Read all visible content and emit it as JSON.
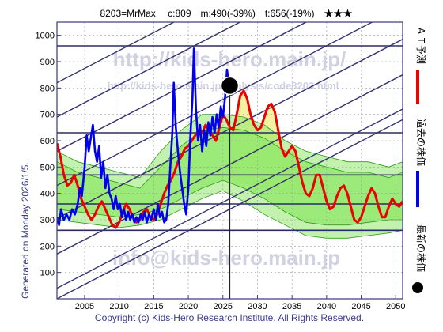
{
  "header": {
    "title": "8203=MrMax　 c:809　m:490(-39%)　t:656(-19%)　★★★"
  },
  "side_label": "Generated on Monday 2026/1/5.",
  "copyright": "Copyright (c) Kids-Hero Research Institute. All Rights Reserved.",
  "watermarks": {
    "url": "http://kids-hero.main.jp/",
    "analysis_url": "http://kids-hero.main.jp/analysis/code8203.html",
    "email": "info@kids-hero.main.jp"
  },
  "legend": [
    {
      "label": "ＡＩ予測",
      "color": "#ee0000",
      "kind": "line"
    },
    {
      "label": "過去の株価",
      "color": "#0000ee",
      "kind": "line"
    },
    {
      "label": "最新の株価",
      "color": "#000000",
      "kind": "dot"
    }
  ],
  "colors": {
    "frame": "#3a3a7a",
    "band_fill": "#8fe86a",
    "band_line": "#2e9a18",
    "yellow_fill": "#f4f2a0",
    "hline": "#2b2b66"
  },
  "chart_data": {
    "type": "line",
    "title": "8203=MrMax　 c:809　m:490(-39%)　t:656(-19%)　★★★",
    "xlim": [
      2001,
      2051
    ],
    "ylim": [
      0,
      1050
    ],
    "x_ticks": [
      2005,
      2010,
      2015,
      2020,
      2025,
      2030,
      2035,
      2040,
      2045,
      2050
    ],
    "y_ticks": [
      100,
      200,
      300,
      400,
      500,
      600,
      700,
      800,
      900,
      1000
    ],
    "grid": true,
    "current": {
      "x": 2026.0,
      "y": 809
    },
    "horizontal_lines": [
      960,
      630,
      470,
      360,
      260
    ],
    "trend_channel": {
      "slope_per_year": 13.6,
      "intercepts_2001": [
        0,
        40,
        170,
        305,
        430,
        560,
        690,
        820
      ]
    },
    "series": [
      {
        "name": "過去の株価",
        "color": "#0000ee",
        "points": [
          [
            2001.0,
            310
          ],
          [
            2001.3,
            280
          ],
          [
            2001.6,
            340
          ],
          [
            2002.0,
            300
          ],
          [
            2002.4,
            320
          ],
          [
            2002.8,
            300
          ],
          [
            2003.2,
            340
          ],
          [
            2003.6,
            320
          ],
          [
            2004.0,
            360
          ],
          [
            2004.3,
            420
          ],
          [
            2004.6,
            390
          ],
          [
            2005.0,
            500
          ],
          [
            2005.3,
            620
          ],
          [
            2005.6,
            560
          ],
          [
            2005.9,
            610
          ],
          [
            2006.2,
            660
          ],
          [
            2006.5,
            560
          ],
          [
            2006.8,
            520
          ],
          [
            2007.1,
            580
          ],
          [
            2007.4,
            460
          ],
          [
            2007.7,
            520
          ],
          [
            2008.0,
            420
          ],
          [
            2008.3,
            470
          ],
          [
            2008.6,
            400
          ],
          [
            2008.9,
            380
          ],
          [
            2009.2,
            340
          ],
          [
            2009.5,
            390
          ],
          [
            2009.8,
            340
          ],
          [
            2010.1,
            360
          ],
          [
            2010.4,
            310
          ],
          [
            2010.7,
            340
          ],
          [
            2011.0,
            300
          ],
          [
            2011.3,
            330
          ],
          [
            2011.6,
            300
          ],
          [
            2011.9,
            320
          ],
          [
            2012.2,
            290
          ],
          [
            2012.5,
            310
          ],
          [
            2012.8,
            290
          ],
          [
            2013.1,
            320
          ],
          [
            2013.4,
            300
          ],
          [
            2013.7,
            330
          ],
          [
            2014.0,
            290
          ],
          [
            2014.3,
            320
          ],
          [
            2014.6,
            300
          ],
          [
            2015.0,
            340
          ],
          [
            2015.3,
            300
          ],
          [
            2015.6,
            360
          ],
          [
            2015.9,
            310
          ],
          [
            2016.2,
            330
          ],
          [
            2016.5,
            290
          ],
          [
            2016.8,
            300
          ],
          [
            2017.1,
            360
          ],
          [
            2017.4,
            500
          ],
          [
            2017.7,
            640
          ],
          [
            2017.9,
            820
          ],
          [
            2018.2,
            650
          ],
          [
            2018.5,
            560
          ],
          [
            2018.8,
            480
          ],
          [
            2019.1,
            420
          ],
          [
            2019.4,
            360
          ],
          [
            2019.7,
            320
          ],
          [
            2020.0,
            420
          ],
          [
            2020.3,
            620
          ],
          [
            2020.6,
            760
          ],
          [
            2020.8,
            950
          ],
          [
            2021.1,
            720
          ],
          [
            2021.4,
            600
          ],
          [
            2021.7,
            660
          ],
          [
            2022.0,
            560
          ],
          [
            2022.3,
            640
          ],
          [
            2022.6,
            580
          ],
          [
            2022.9,
            670
          ],
          [
            2023.2,
            620
          ],
          [
            2023.5,
            690
          ],
          [
            2023.8,
            630
          ],
          [
            2024.1,
            700
          ],
          [
            2024.4,
            650
          ],
          [
            2024.7,
            730
          ],
          [
            2025.0,
            690
          ],
          [
            2025.3,
            760
          ],
          [
            2025.6,
            870
          ],
          [
            2025.9,
            800
          ]
        ]
      },
      {
        "name": "ＡＩ予測",
        "color": "#ee0000",
        "points": [
          [
            2001.0,
            590
          ],
          [
            2001.5,
            540
          ],
          [
            2002.0,
            470
          ],
          [
            2002.5,
            430
          ],
          [
            2003.0,
            440
          ],
          [
            2003.5,
            470
          ],
          [
            2004.0,
            430
          ],
          [
            2004.5,
            380
          ],
          [
            2005.0,
            350
          ],
          [
            2005.5,
            320
          ],
          [
            2006.0,
            300
          ],
          [
            2006.5,
            320
          ],
          [
            2007.0,
            350
          ],
          [
            2007.5,
            370
          ],
          [
            2008.0,
            340
          ],
          [
            2008.5,
            310
          ],
          [
            2009.0,
            280
          ],
          [
            2009.5,
            270
          ],
          [
            2010.0,
            290
          ],
          [
            2010.5,
            330
          ],
          [
            2011.0,
            360
          ],
          [
            2011.5,
            340
          ],
          [
            2012.0,
            310
          ],
          [
            2012.5,
            290
          ],
          [
            2013.0,
            300
          ],
          [
            2013.5,
            330
          ],
          [
            2014.0,
            340
          ],
          [
            2014.5,
            310
          ],
          [
            2015.0,
            300
          ],
          [
            2015.5,
            320
          ],
          [
            2016.0,
            360
          ],
          [
            2016.5,
            400
          ],
          [
            2017.0,
            430
          ],
          [
            2017.5,
            450
          ],
          [
            2018.0,
            480
          ],
          [
            2018.5,
            520
          ],
          [
            2019.0,
            540
          ],
          [
            2019.5,
            570
          ],
          [
            2020.0,
            580
          ],
          [
            2020.5,
            600
          ],
          [
            2021.0,
            620
          ],
          [
            2021.5,
            640
          ],
          [
            2022.0,
            630
          ],
          [
            2022.5,
            660
          ],
          [
            2023.0,
            640
          ],
          [
            2023.5,
            620
          ],
          [
            2024.0,
            600
          ],
          [
            2024.5,
            650
          ],
          [
            2025.0,
            700
          ],
          [
            2025.5,
            680
          ],
          [
            2026.0,
            650
          ],
          [
            2026.5,
            640
          ],
          [
            2027.0,
            700
          ],
          [
            2027.5,
            770
          ],
          [
            2028.0,
            790
          ],
          [
            2028.5,
            760
          ],
          [
            2029.0,
            700
          ],
          [
            2029.5,
            660
          ],
          [
            2030.0,
            640
          ],
          [
            2030.5,
            650
          ],
          [
            2031.0,
            690
          ],
          [
            2031.5,
            730
          ],
          [
            2032.0,
            740
          ],
          [
            2032.5,
            710
          ],
          [
            2033.0,
            640
          ],
          [
            2033.5,
            570
          ],
          [
            2034.0,
            540
          ],
          [
            2034.5,
            560
          ],
          [
            2035.0,
            580
          ],
          [
            2035.5,
            560
          ],
          [
            2036.0,
            500
          ],
          [
            2036.5,
            440
          ],
          [
            2037.0,
            400
          ],
          [
            2037.5,
            390
          ],
          [
            2038.0,
            420
          ],
          [
            2038.5,
            470
          ],
          [
            2039.0,
            470
          ],
          [
            2039.5,
            420
          ],
          [
            2040.0,
            370
          ],
          [
            2040.5,
            340
          ],
          [
            2041.0,
            350
          ],
          [
            2041.5,
            390
          ],
          [
            2042.0,
            420
          ],
          [
            2042.5,
            430
          ],
          [
            2043.0,
            400
          ],
          [
            2043.5,
            350
          ],
          [
            2044.0,
            300
          ],
          [
            2044.5,
            290
          ],
          [
            2045.0,
            310
          ],
          [
            2045.5,
            350
          ],
          [
            2046.0,
            390
          ],
          [
            2046.5,
            420
          ],
          [
            2047.0,
            400
          ],
          [
            2047.5,
            350
          ],
          [
            2048.0,
            310
          ],
          [
            2048.5,
            310
          ],
          [
            2049.0,
            350
          ],
          [
            2049.5,
            380
          ],
          [
            2050.0,
            360
          ],
          [
            2050.5,
            350
          ],
          [
            2051.0,
            370
          ]
        ]
      }
    ],
    "band_outer": {
      "x": [
        2001,
        2004,
        2007,
        2010,
        2013,
        2016,
        2019,
        2022,
        2025,
        2028,
        2031,
        2034,
        2037,
        2040,
        2043,
        2046,
        2049,
        2051
      ],
      "upper": [
        560,
        520,
        500,
        480,
        460,
        560,
        640,
        700,
        700,
        690,
        660,
        600,
        560,
        540,
        520,
        520,
        500,
        520
      ],
      "lower": [
        300,
        290,
        280,
        270,
        280,
        300,
        340,
        380,
        410,
        370,
        320,
        280,
        240,
        230,
        230,
        240,
        250,
        260
      ]
    },
    "band_inner": {
      "x": [
        2001,
        2004,
        2007,
        2010,
        2013,
        2016,
        2019,
        2022,
        2025,
        2028,
        2031,
        2034,
        2037,
        2040,
        2043,
        2046,
        2049,
        2051
      ],
      "upper": [
        520,
        480,
        460,
        440,
        420,
        500,
        580,
        640,
        650,
        640,
        610,
        560,
        520,
        500,
        480,
        480,
        460,
        480
      ],
      "lower": [
        340,
        330,
        320,
        310,
        320,
        340,
        380,
        420,
        450,
        420,
        380,
        330,
        290,
        280,
        280,
        290,
        300,
        300
      ]
    }
  }
}
